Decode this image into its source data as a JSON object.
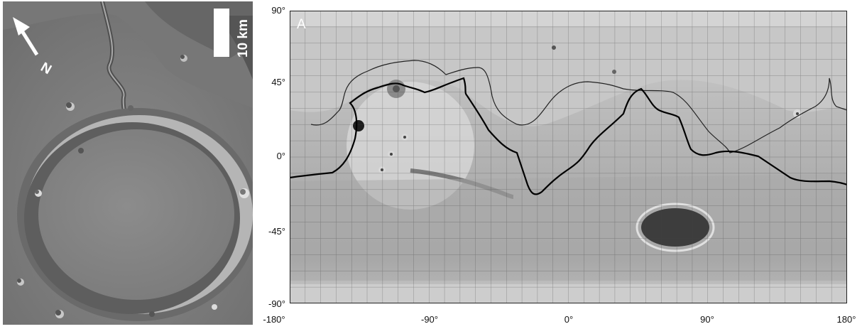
{
  "left_image": {
    "north_label": "N",
    "scale_label": "10 km"
  },
  "right_map": {
    "panel_label": "A",
    "y_ticks": [
      "90°",
      "45°",
      "0°",
      "-45°",
      "-90°"
    ],
    "x_ticks": [
      "-180°",
      "-90°",
      "0°",
      "90°",
      "180°"
    ]
  }
}
